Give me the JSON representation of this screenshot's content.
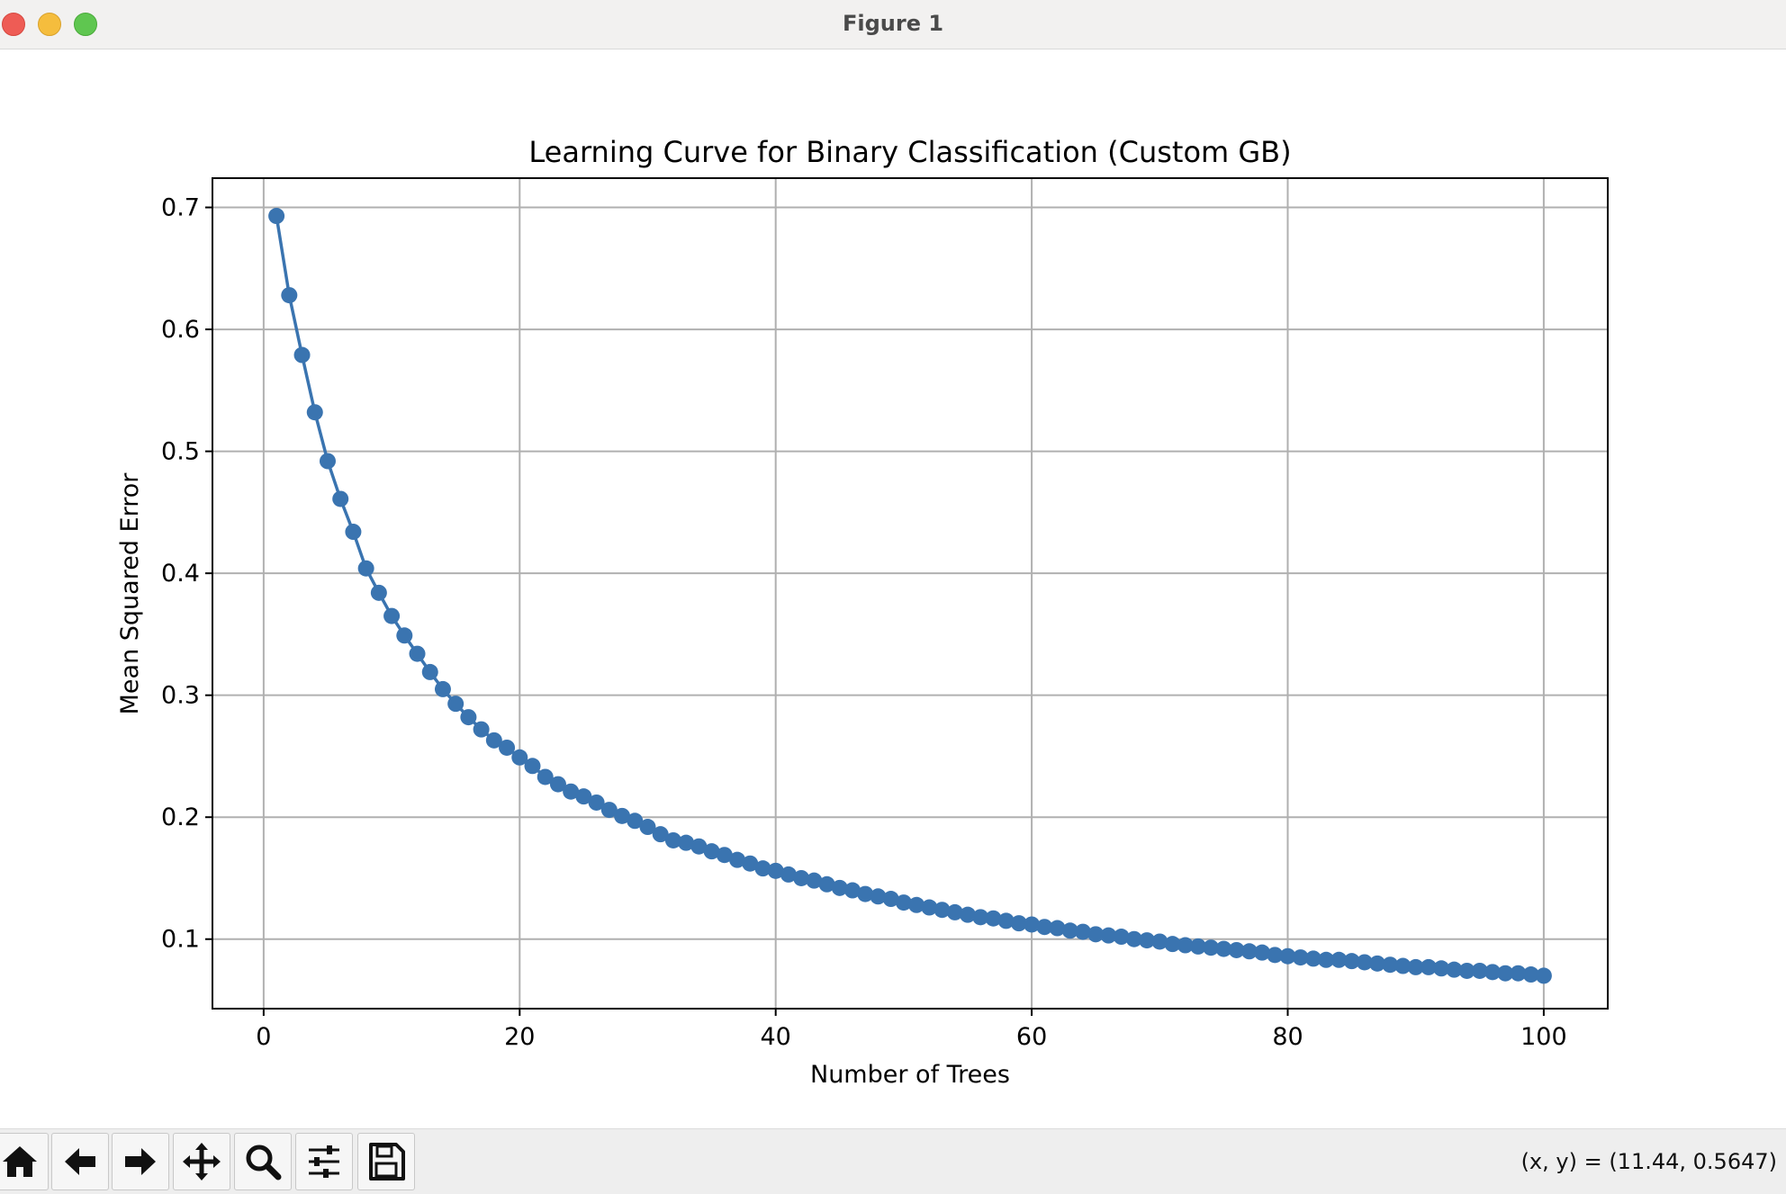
{
  "window": {
    "title": "Figure 1"
  },
  "toolbar": {
    "buttons": [
      {
        "name": "home-icon"
      },
      {
        "name": "back-icon"
      },
      {
        "name": "forward-icon"
      },
      {
        "name": "pan-icon"
      },
      {
        "name": "zoom-icon"
      },
      {
        "name": "configure-subplots-icon"
      },
      {
        "name": "save-icon"
      }
    ],
    "coords_text": "(x, y) = (11.44, 0.5647)"
  },
  "chart_data": {
    "type": "line",
    "title": "Learning Curve for Binary Classification (Custom GB)",
    "xlabel": "Number of Trees",
    "ylabel": "Mean Squared Error",
    "xlim": [
      -4,
      105
    ],
    "ylim": [
      0.043,
      0.724
    ],
    "xticks": [
      0,
      20,
      40,
      60,
      80,
      100
    ],
    "yticks": [
      0.1,
      0.2,
      0.3,
      0.4,
      0.5,
      0.6,
      0.7
    ],
    "grid": true,
    "marker": "circle",
    "color": "#3a74b0",
    "series": [
      {
        "x": [
          1,
          2,
          3,
          4,
          5,
          6,
          7,
          8,
          9,
          10,
          11,
          12,
          13,
          14,
          15,
          16,
          17,
          18,
          19,
          20,
          21,
          22,
          23,
          24,
          25,
          26,
          27,
          28,
          29,
          30,
          31,
          32,
          33,
          34,
          35,
          36,
          37,
          38,
          39,
          40,
          41,
          42,
          43,
          44,
          45,
          46,
          47,
          48,
          49,
          50,
          51,
          52,
          53,
          54,
          55,
          56,
          57,
          58,
          59,
          60,
          61,
          62,
          63,
          64,
          65,
          66,
          67,
          68,
          69,
          70,
          71,
          72,
          73,
          74,
          75,
          76,
          77,
          78,
          79,
          80,
          81,
          82,
          83,
          84,
          85,
          86,
          87,
          88,
          89,
          90,
          91,
          92,
          93,
          94,
          95,
          96,
          97,
          98,
          99,
          100
        ],
        "y": [
          0.693,
          0.628,
          0.579,
          0.532,
          0.492,
          0.461,
          0.434,
          0.404,
          0.384,
          0.365,
          0.349,
          0.334,
          0.319,
          0.305,
          0.293,
          0.282,
          0.272,
          0.263,
          0.257,
          0.249,
          0.242,
          0.233,
          0.227,
          0.221,
          0.217,
          0.212,
          0.206,
          0.201,
          0.197,
          0.192,
          0.186,
          0.181,
          0.179,
          0.176,
          0.172,
          0.169,
          0.165,
          0.162,
          0.158,
          0.156,
          0.153,
          0.15,
          0.148,
          0.145,
          0.142,
          0.14,
          0.137,
          0.135,
          0.133,
          0.13,
          0.128,
          0.126,
          0.124,
          0.122,
          0.12,
          0.118,
          0.117,
          0.115,
          0.113,
          0.112,
          0.11,
          0.109,
          0.107,
          0.106,
          0.104,
          0.103,
          0.102,
          0.1,
          0.099,
          0.098,
          0.096,
          0.095,
          0.094,
          0.093,
          0.092,
          0.091,
          0.09,
          0.089,
          0.087,
          0.086,
          0.085,
          0.084,
          0.083,
          0.083,
          0.082,
          0.081,
          0.08,
          0.079,
          0.078,
          0.077,
          0.077,
          0.076,
          0.075,
          0.074,
          0.074,
          0.073,
          0.072,
          0.072,
          0.071,
          0.07
        ]
      }
    ]
  }
}
